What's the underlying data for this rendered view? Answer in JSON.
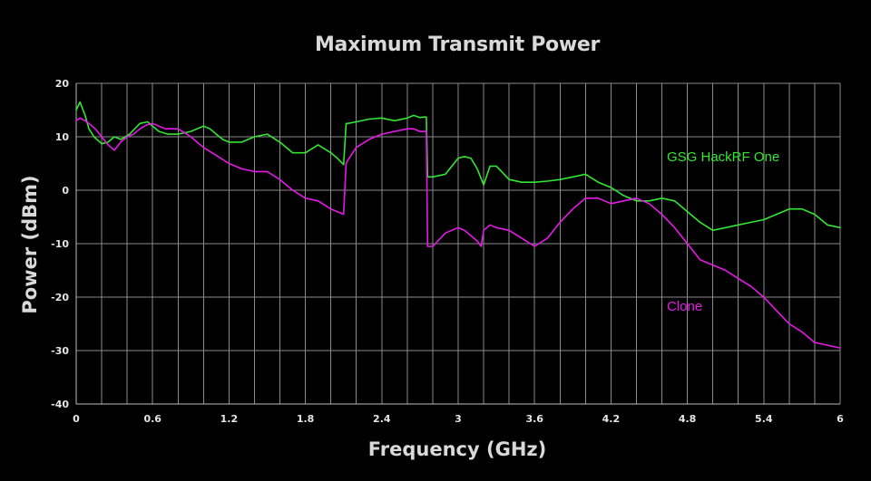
{
  "chart_data": {
    "type": "line",
    "title": "Maximum Transmit Power",
    "xlabel": "Frequency (GHz)",
    "ylabel": "Power (dBm)",
    "xlim": [
      0,
      6
    ],
    "ylim": [
      -40,
      20
    ],
    "xticks": [
      0,
      0.6,
      1.2,
      1.8,
      2.4,
      3,
      3.6,
      4.2,
      4.8,
      5.4,
      6
    ],
    "xtick_labels": [
      "0",
      "0.6",
      "1.2",
      "1.8",
      "2.4",
      "3",
      "3.6",
      "4.2",
      "4.8",
      "5.4",
      "6"
    ],
    "yticks": [
      20,
      10,
      0,
      -10,
      -20,
      -30,
      -40
    ],
    "ytick_labels": [
      "20",
      "10",
      "0",
      "-10",
      "-20",
      "-30",
      "-40"
    ],
    "grid": true,
    "background": "#000000",
    "series": [
      {
        "name": "GSG HackRF One",
        "color": "#33e633",
        "label_text": "GSG HackRF One",
        "x": [
          0,
          0.03,
          0.07,
          0.1,
          0.14,
          0.2,
          0.25,
          0.3,
          0.35,
          0.42,
          0.5,
          0.56,
          0.6,
          0.65,
          0.72,
          0.8,
          0.9,
          1.0,
          1.05,
          1.1,
          1.15,
          1.2,
          1.3,
          1.4,
          1.5,
          1.6,
          1.7,
          1.8,
          1.9,
          2.0,
          2.05,
          2.1,
          2.12,
          2.13,
          2.2,
          2.3,
          2.4,
          2.5,
          2.6,
          2.65,
          2.7,
          2.73,
          2.75,
          2.76,
          2.8,
          2.9,
          3.0,
          3.05,
          3.1,
          3.15,
          3.2,
          3.25,
          3.3,
          3.4,
          3.5,
          3.6,
          3.7,
          3.8,
          3.9,
          4.0,
          4.1,
          4.2,
          4.3,
          4.4,
          4.5,
          4.6,
          4.7,
          4.8,
          4.9,
          5.0,
          5.1,
          5.2,
          5.3,
          5.4,
          5.5,
          5.6,
          5.7,
          5.8,
          5.9,
          6.0
        ],
        "values": [
          15,
          16.5,
          14,
          11.5,
          10,
          8.7,
          9,
          10,
          9.5,
          10.5,
          12.5,
          12.8,
          12,
          11,
          10.5,
          10.5,
          11,
          12,
          11.5,
          10.5,
          9.5,
          9,
          9,
          10,
          10.5,
          9,
          7,
          7,
          8.5,
          7,
          6,
          4.8,
          12.5,
          12.5,
          12.8,
          13.3,
          13.5,
          13,
          13.5,
          14,
          13.6,
          13.7,
          13.7,
          2.5,
          2.5,
          3,
          6,
          6.3,
          6,
          4,
          1,
          4.5,
          4.5,
          2,
          1.5,
          1.5,
          1.7,
          2,
          2.5,
          3,
          1.5,
          0.5,
          -1,
          -2,
          -2,
          -1.5,
          -2,
          -4,
          -6,
          -7.5,
          -7,
          -6.5,
          -6,
          -5.5,
          -4.5,
          -3.5,
          -3.5,
          -4.5,
          -6.5,
          -7
        ]
      },
      {
        "name": "Clone",
        "color": "#e61ae6",
        "label_text": "Clone",
        "x": [
          0,
          0.03,
          0.07,
          0.1,
          0.15,
          0.2,
          0.25,
          0.3,
          0.35,
          0.4,
          0.45,
          0.5,
          0.55,
          0.6,
          0.7,
          0.8,
          0.9,
          1.0,
          1.1,
          1.2,
          1.3,
          1.4,
          1.5,
          1.6,
          1.7,
          1.8,
          1.9,
          2.0,
          2.05,
          2.1,
          2.12,
          2.13,
          2.2,
          2.3,
          2.4,
          2.5,
          2.6,
          2.65,
          2.7,
          2.75,
          2.76,
          2.8,
          2.9,
          3.0,
          3.05,
          3.1,
          3.15,
          3.18,
          3.2,
          3.25,
          3.3,
          3.4,
          3.5,
          3.6,
          3.7,
          3.8,
          3.9,
          4.0,
          4.1,
          4.2,
          4.3,
          4.4,
          4.5,
          4.6,
          4.7,
          4.8,
          4.9,
          5.0,
          5.1,
          5.2,
          5.3,
          5.4,
          5.5,
          5.6,
          5.7,
          5.8,
          5.9,
          6.0
        ],
        "values": [
          13,
          13.5,
          13,
          12.5,
          11.5,
          10,
          8.5,
          7.5,
          9,
          10,
          10.5,
          11.5,
          12.2,
          12.5,
          11.5,
          11.5,
          10,
          8,
          6.5,
          5,
          4,
          3.5,
          3.5,
          2,
          0,
          -1.5,
          -2,
          -3.5,
          -4,
          -4.5,
          5,
          5.5,
          8,
          9.5,
          10.5,
          11,
          11.5,
          11.5,
          11,
          11,
          -10.5,
          -10.5,
          -8,
          -7,
          -7.5,
          -8.5,
          -9.5,
          -10.5,
          -7.5,
          -6.5,
          -7,
          -7.5,
          -9,
          -10.5,
          -9,
          -6,
          -3.5,
          -1.5,
          -1.5,
          -2.5,
          -2,
          -1.5,
          -2.5,
          -4.5,
          -7,
          -10,
          -13,
          -14,
          -15,
          -16.5,
          -18,
          -20,
          -22.5,
          -25,
          -26.5,
          -28.5,
          -29,
          -29.5
        ]
      }
    ]
  }
}
